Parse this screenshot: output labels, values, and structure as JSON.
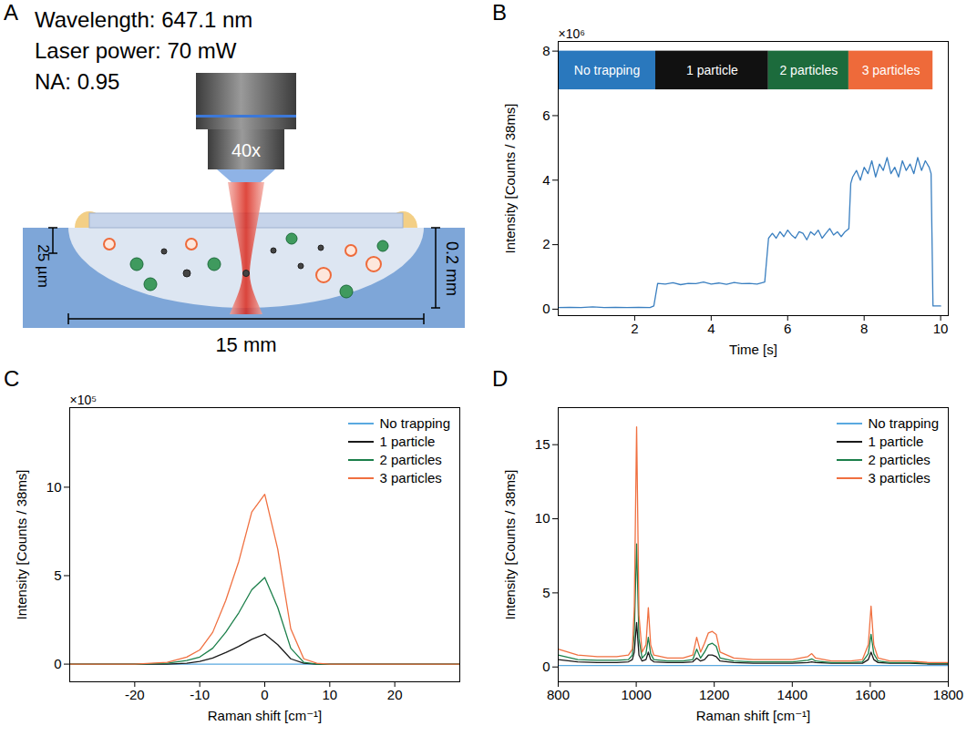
{
  "diagram": {
    "panel": "A",
    "text_lines": [
      "Wavelength: 647.1 nm",
      "Laser power: 70 mW",
      "NA: 0.95"
    ],
    "objective_label": "40x",
    "annotations": {
      "focus_depth": "25 µm",
      "well_depth": "0.2 mm",
      "well_width": "15 mm"
    }
  },
  "chart_data": [
    {
      "panel": "B",
      "type": "line",
      "xlabel": "Time [s]",
      "ylabel": "Intensity [Counts / 38ms]",
      "y_multiplier": "×10⁶",
      "color": "#3a7fc0",
      "x": [
        0,
        0.3,
        0.6,
        0.9,
        1.2,
        1.5,
        1.8,
        2.1,
        2.4,
        2.5,
        2.6,
        2.8,
        3.0,
        3.2,
        3.4,
        3.6,
        3.8,
        4.0,
        4.2,
        4.4,
        4.6,
        4.8,
        5.0,
        5.2,
        5.4,
        5.5,
        5.6,
        5.7,
        5.8,
        5.9,
        6.0,
        6.1,
        6.2,
        6.3,
        6.4,
        6.5,
        6.6,
        6.7,
        6.8,
        6.9,
        7.0,
        7.1,
        7.2,
        7.3,
        7.4,
        7.5,
        7.6,
        7.65,
        7.7,
        7.8,
        7.9,
        8.0,
        8.1,
        8.2,
        8.3,
        8.4,
        8.5,
        8.6,
        8.7,
        8.8,
        8.9,
        9.0,
        9.1,
        9.2,
        9.3,
        9.4,
        9.5,
        9.6,
        9.7,
        9.75,
        9.8,
        10.0
      ],
      "values": [
        0.05,
        0.06,
        0.05,
        0.07,
        0.05,
        0.06,
        0.05,
        0.06,
        0.05,
        0.1,
        0.8,
        0.78,
        0.82,
        0.76,
        0.8,
        0.79,
        0.84,
        0.78,
        0.81,
        0.77,
        0.83,
        0.79,
        0.8,
        0.78,
        0.84,
        2.2,
        2.35,
        2.2,
        2.4,
        2.25,
        2.45,
        2.3,
        2.2,
        2.4,
        2.35,
        2.15,
        2.4,
        2.3,
        2.45,
        2.2,
        2.35,
        2.5,
        2.3,
        2.4,
        2.25,
        2.4,
        2.5,
        3.9,
        4.1,
        4.3,
        4.0,
        4.4,
        4.2,
        4.6,
        4.1,
        4.5,
        4.3,
        4.7,
        4.2,
        4.4,
        4.1,
        4.6,
        4.3,
        4.5,
        4.2,
        4.7,
        4.3,
        4.6,
        4.4,
        4.2,
        0.1,
        0.1
      ],
      "xlim": [
        0,
        10.2
      ],
      "xticks": [
        2,
        4,
        6,
        8,
        10
      ],
      "ylim": [
        -0.2,
        8.3
      ],
      "yticks": [
        0,
        2,
        4,
        6,
        8
      ],
      "annotations": [
        {
          "text": "No trapping",
          "x_start": 0,
          "x_end": 2.55,
          "y_start": 6.8,
          "y_end": 8.0,
          "color": "#2a78bd"
        },
        {
          "text": "1 particle",
          "x_start": 2.55,
          "x_end": 5.5,
          "y_start": 6.8,
          "y_end": 8.0,
          "color": "#111111"
        },
        {
          "text": "2 particles",
          "x_start": 5.5,
          "x_end": 7.6,
          "y_start": 6.8,
          "y_end": 8.0,
          "color": "#1c6b3c"
        },
        {
          "text": "3 particles",
          "x_start": 7.6,
          "x_end": 9.8,
          "y_start": 6.8,
          "y_end": 8.0,
          "color": "#ee6a3a"
        }
      ]
    },
    {
      "panel": "C",
      "type": "line",
      "xlabel": "Raman shift [cm⁻¹]",
      "ylabel": "Intensity [Counts / 38ms]",
      "y_multiplier": "×10⁵",
      "legend": "top-right",
      "x": [
        -30,
        -25,
        -20,
        -15,
        -12,
        -10,
        -8,
        -6,
        -4,
        -2,
        0,
        2,
        4,
        6,
        8,
        10,
        15,
        20,
        25,
        30
      ],
      "series": [
        {
          "name": "No trapping",
          "color": "#5aa9e0",
          "values": [
            0,
            0,
            0,
            0,
            0,
            0,
            0,
            0,
            0,
            0,
            0,
            0,
            0,
            0,
            0,
            0,
            0,
            0,
            0,
            0
          ]
        },
        {
          "name": "1 particle",
          "color": "#1a1a1a",
          "values": [
            0,
            0,
            0,
            0,
            0.05,
            0.15,
            0.35,
            0.65,
            1.0,
            1.4,
            1.7,
            1.1,
            0.3,
            0.05,
            0,
            0,
            0,
            0,
            0,
            0
          ]
        },
        {
          "name": "2 particles",
          "color": "#1b7f4a",
          "values": [
            0,
            0,
            0,
            0.05,
            0.2,
            0.4,
            0.9,
            1.8,
            2.9,
            4.2,
            4.9,
            3.2,
            0.9,
            0.1,
            0,
            0,
            0,
            0,
            0,
            0
          ]
        },
        {
          "name": "3 particles",
          "color": "#f07040",
          "values": [
            0,
            0,
            0,
            0.1,
            0.4,
            0.8,
            1.8,
            3.6,
            5.8,
            8.6,
            9.6,
            6.5,
            2.0,
            0.3,
            0.05,
            0,
            0,
            0,
            0,
            0
          ]
        }
      ],
      "xlim": [
        -30,
        30
      ],
      "xticks": [
        -20,
        -10,
        0,
        10,
        20
      ],
      "ylim": [
        -1,
        14.5
      ],
      "yticks": [
        0,
        5,
        10
      ]
    },
    {
      "panel": "D",
      "type": "line",
      "xlabel": "Raman shift [cm⁻¹]",
      "ylabel": "Intensity [Counts / 38ms]",
      "legend": "top-right",
      "x": [
        800,
        850,
        900,
        950,
        980,
        990,
        995,
        1001,
        1007,
        1015,
        1025,
        1031,
        1037,
        1045,
        1080,
        1120,
        1145,
        1155,
        1165,
        1175,
        1185,
        1195,
        1205,
        1215,
        1250,
        1300,
        1350,
        1400,
        1440,
        1450,
        1460,
        1500,
        1550,
        1580,
        1595,
        1602,
        1609,
        1620,
        1650,
        1700,
        1750,
        1800
      ],
      "series": [
        {
          "name": "No trapping",
          "color": "#5aa9e0",
          "values": [
            0.1,
            0.1,
            0.1,
            0.1,
            0.1,
            0.1,
            0.1,
            0.1,
            0.1,
            0.1,
            0.1,
            0.1,
            0.1,
            0.1,
            0.1,
            0.1,
            0.1,
            0.1,
            0.1,
            0.1,
            0.1,
            0.1,
            0.1,
            0.1,
            0.1,
            0.1,
            0.1,
            0.1,
            0.1,
            0.1,
            0.1,
            0.1,
            0.1,
            0.1,
            0.1,
            0.1,
            0.1,
            0.1,
            0.1,
            0.1,
            0.1,
            0.1
          ]
        },
        {
          "name": "1 particle",
          "color": "#1a1a1a",
          "values": [
            0.5,
            0.35,
            0.3,
            0.3,
            0.35,
            0.5,
            1.0,
            3.0,
            0.8,
            0.4,
            0.5,
            1.0,
            0.5,
            0.35,
            0.3,
            0.3,
            0.35,
            0.6,
            0.4,
            0.5,
            0.8,
            0.8,
            0.7,
            0.4,
            0.3,
            0.25,
            0.25,
            0.25,
            0.3,
            0.35,
            0.3,
            0.25,
            0.25,
            0.25,
            0.5,
            1.0,
            0.5,
            0.3,
            0.25,
            0.25,
            0.2,
            0.2
          ]
        },
        {
          "name": "2 particles",
          "color": "#1b7f4a",
          "values": [
            0.8,
            0.5,
            0.45,
            0.45,
            0.5,
            0.8,
            2.2,
            8.3,
            1.9,
            0.6,
            0.9,
            2.0,
            0.9,
            0.5,
            0.4,
            0.4,
            0.5,
            1.2,
            0.6,
            1.0,
            1.5,
            1.6,
            1.4,
            0.6,
            0.4,
            0.35,
            0.35,
            0.35,
            0.45,
            0.55,
            0.4,
            0.3,
            0.3,
            0.35,
            0.9,
            2.2,
            0.9,
            0.4,
            0.3,
            0.3,
            0.25,
            0.25
          ]
        },
        {
          "name": "3 particles",
          "color": "#f07040",
          "values": [
            1.2,
            0.8,
            0.7,
            0.7,
            0.8,
            1.2,
            4.0,
            16.2,
            3.5,
            1.0,
            1.5,
            4.0,
            1.5,
            0.8,
            0.6,
            0.6,
            0.8,
            2.0,
            1.0,
            1.6,
            2.3,
            2.4,
            2.2,
            1.0,
            0.6,
            0.5,
            0.5,
            0.5,
            0.7,
            0.9,
            0.6,
            0.4,
            0.4,
            0.5,
            1.5,
            4.1,
            1.5,
            0.6,
            0.4,
            0.4,
            0.3,
            0.3
          ]
        }
      ],
      "xlim": [
        800,
        1800
      ],
      "xticks": [
        800,
        1000,
        1200,
        1400,
        1600,
        1800
      ],
      "ylim": [
        -1,
        17.5
      ],
      "yticks": [
        0,
        5,
        10,
        15
      ]
    }
  ]
}
